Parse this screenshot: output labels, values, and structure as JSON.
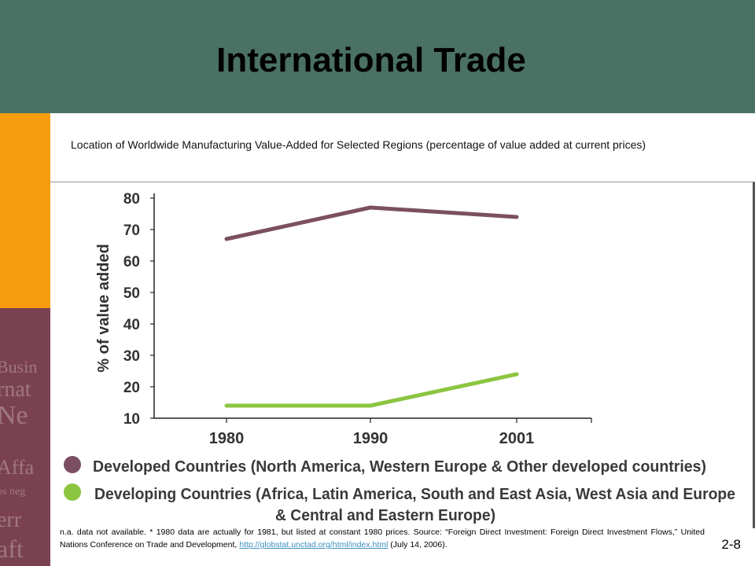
{
  "slide": {
    "title": "International Trade",
    "caption": "Location of Worldwide Manufacturing Value-Added for Selected Regions (percentage of value added at current prices)",
    "number": "2-8",
    "decorative_words": [
      "Busin",
      "rnat",
      "Ne",
      "Affa",
      "os neg",
      "err",
      "aft"
    ]
  },
  "footnote": {
    "text_before": "n.a.  data not available. * 1980 data are actually for 1981, but listed at constant 1980 prices. Source: “Foreign Direct Investment: Foreign Direct Investment Flows,” United Nations Conference on Trade and Development, ",
    "link": "http://globstat.unctad.org/html/index.html",
    "text_after": " (July 14, 2006)."
  },
  "colors": {
    "header": "#4a7163",
    "orange": "#f79b0f",
    "developed": "#7b4f61",
    "developing": "#8cc540"
  },
  "chart_data": {
    "type": "line",
    "categories": [
      "1980",
      "1990",
      "2001"
    ],
    "ylabel": "% of value added",
    "ylim": [
      10,
      80
    ],
    "yticks": [
      10,
      20,
      30,
      40,
      50,
      60,
      70,
      80
    ],
    "grid": false,
    "legend_position": "bottom",
    "series": [
      {
        "name": "Developed Countries (North America, Western Europe & Other developed countries)",
        "values": [
          67,
          77,
          74
        ],
        "color": "#7b4f61"
      },
      {
        "name": "Developing Countries (Africa, Latin America, South and East Asia, West Asia and Europe & Central and Eastern Europe)",
        "values": [
          14,
          14,
          24
        ],
        "color": "#8cc540"
      }
    ]
  }
}
